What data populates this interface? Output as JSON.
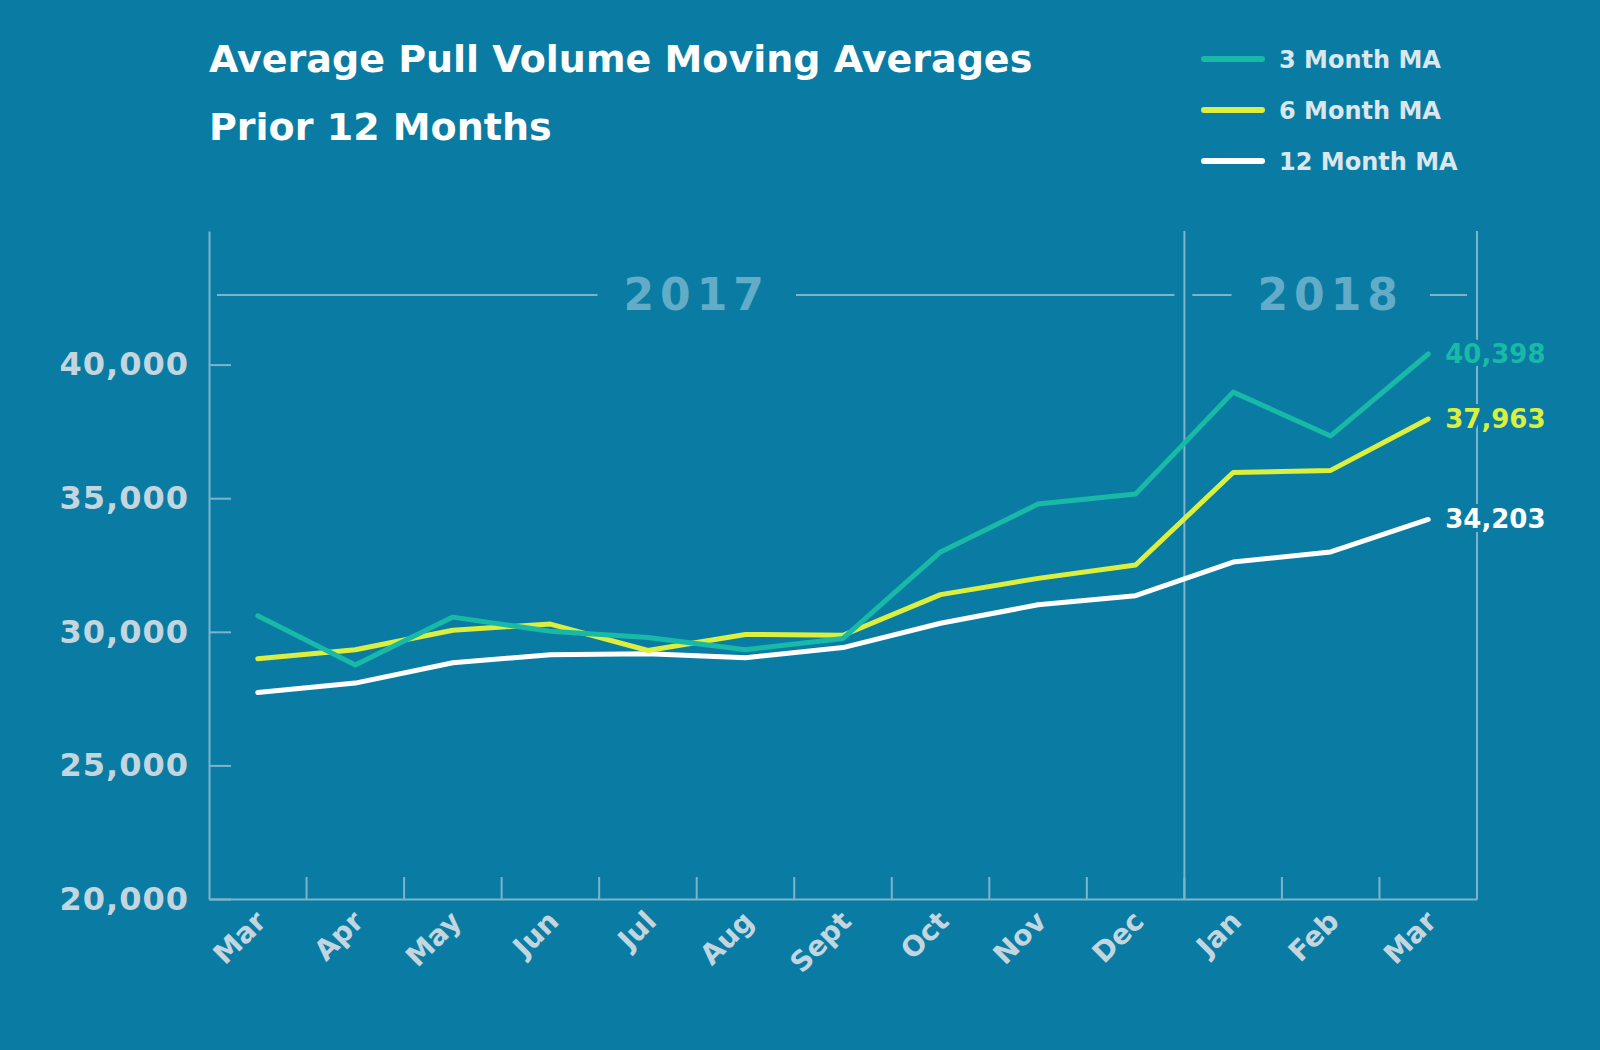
{
  "chart_data": {
    "type": "line",
    "title": "Average Pull Volume Moving Averages",
    "subtitle": "Prior 12 Months",
    "categories": [
      "Mar",
      "Apr",
      "May",
      "Jun",
      "Jul",
      "Aug",
      "Sept",
      "Oct",
      "Nov",
      "Dec",
      "Jan",
      "Feb",
      "Mar"
    ],
    "periods": [
      {
        "label": "2017",
        "start": 0,
        "end": 9
      },
      {
        "label": "2018",
        "start": 10,
        "end": 12
      }
    ],
    "series": [
      {
        "name": "3 Month MA",
        "color": "#19b9a7",
        "values": [
          30600,
          28760,
          30550,
          30020,
          29790,
          29330,
          29750,
          32990,
          34780,
          35160,
          38970,
          37330,
          40398
        ],
        "value_labels": [
          null,
          null,
          null,
          null,
          null,
          null,
          null,
          null,
          null,
          null,
          null,
          null,
          "40,398"
        ]
      },
      {
        "name": "6 Month MA",
        "color": "#dcef3f",
        "values": [
          28990,
          29330,
          30060,
          30290,
          29300,
          29900,
          29870,
          31390,
          32000,
          32500,
          35960,
          36040,
          37963
        ],
        "value_labels": [
          null,
          null,
          null,
          null,
          null,
          null,
          null,
          null,
          null,
          null,
          null,
          null,
          "37,963"
        ]
      },
      {
        "name": "12 Month MA",
        "color": "#ffffff",
        "values": [
          27730,
          28080,
          28840,
          29140,
          29180,
          29030,
          29410,
          30320,
          31010,
          31350,
          32610,
          32990,
          34203
        ],
        "value_labels": [
          null,
          null,
          null,
          null,
          null,
          null,
          null,
          null,
          null,
          null,
          null,
          null,
          "34,203"
        ]
      }
    ],
    "ylim": [
      20000,
      45000
    ],
    "yticks": [
      {
        "value": 20000,
        "label": "20,000"
      },
      {
        "value": 25000,
        "label": "25,000"
      },
      {
        "value": 30000,
        "label": "30,000"
      },
      {
        "value": 35000,
        "label": "35,000"
      },
      {
        "value": 40000,
        "label": "40,000"
      }
    ],
    "grid": false,
    "legend": "top-right"
  }
}
